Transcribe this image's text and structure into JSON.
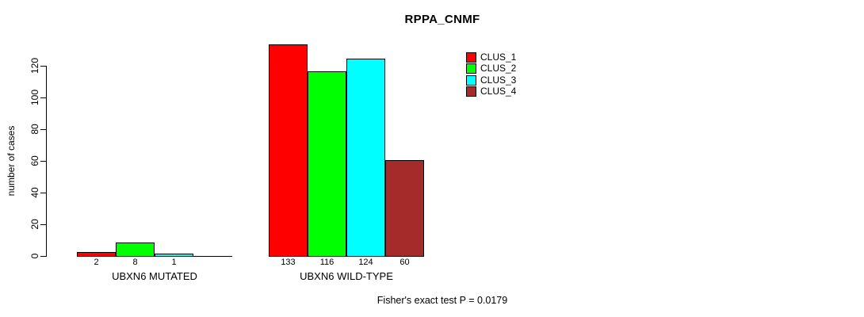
{
  "chart_data": {
    "type": "bar",
    "title": "RPPA_CNMF",
    "ylabel": "number of cases",
    "yticks": [
      0,
      20,
      40,
      60,
      80,
      100,
      120
    ],
    "ylim": [
      0,
      135
    ],
    "grid": false,
    "legend_position": "top-right-outside",
    "categories": [
      "UBXN6 MUTATED",
      "UBXN6 WILD-TYPE"
    ],
    "series": [
      {
        "name": "CLUS_1",
        "color": "#FF0000",
        "values": [
          2,
          133
        ]
      },
      {
        "name": "CLUS_2",
        "color": "#00FF00",
        "values": [
          8,
          116
        ]
      },
      {
        "name": "CLUS_3",
        "color": "#00FFFF",
        "values": [
          1,
          124
        ]
      },
      {
        "name": "CLUS_4",
        "color": "#A52A2A",
        "values": [
          0,
          60
        ]
      }
    ],
    "bar_value_labels_shown": true,
    "zero_value_labels_hidden": true,
    "footnote": "Fisher's exact test P = 0.0179"
  }
}
